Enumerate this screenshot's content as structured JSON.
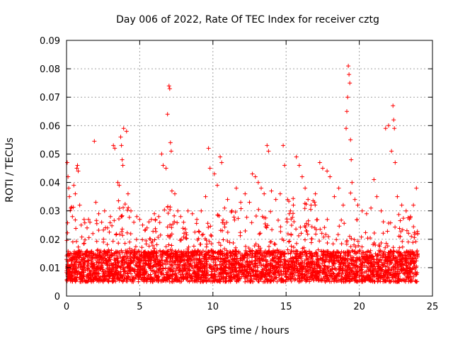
{
  "chart_data": {
    "type": "scatter",
    "title": "Day 006 of 2022, Rate Of TEC Index for receiver cztg",
    "xlabel": "GPS time / hours",
    "ylabel": "ROTI / TECUs",
    "xlim": [
      0,
      25
    ],
    "ylim": [
      0,
      0.09
    ],
    "xticks": [
      "0",
      "5",
      "10",
      "15",
      "20",
      "25"
    ],
    "yticks": [
      "0",
      "0.01",
      "0.02",
      "0.03",
      "0.04",
      "0.05",
      "0.06",
      "0.07",
      "0.08",
      "0.09"
    ],
    "grid": true,
    "marker": "+",
    "color": "#ff0000",
    "series": [
      {
        "values_note": "",
        "points": [
          [
            0.05,
            0.047
          ],
          [
            0.1,
            0.042
          ],
          [
            0.15,
            0.038
          ],
          [
            0.2,
            0.035
          ],
          [
            0.3,
            0.031
          ],
          [
            0.4,
            0.028
          ],
          [
            0.5,
            0.039
          ],
          [
            0.6,
            0.036
          ],
          [
            0.7,
            0.045
          ],
          [
            0.75,
            0.046
          ],
          [
            0.8,
            0.044
          ],
          [
            0.9,
            0.032
          ],
          [
            1.0,
            0.025
          ],
          [
            1.2,
            0.027
          ],
          [
            1.4,
            0.024
          ],
          [
            1.6,
            0.026
          ],
          [
            1.8,
            0.022
          ],
          [
            1.9,
            0.0545
          ],
          [
            2.0,
            0.033
          ],
          [
            2.2,
            0.029
          ],
          [
            2.4,
            0.026
          ],
          [
            2.6,
            0.03
          ],
          [
            2.8,
            0.024
          ],
          [
            3.0,
            0.028
          ],
          [
            3.2,
            0.053
          ],
          [
            3.3,
            0.052
          ],
          [
            3.5,
            0.04
          ],
          [
            3.6,
            0.039
          ],
          [
            3.7,
            0.056
          ],
          [
            3.75,
            0.053
          ],
          [
            3.8,
            0.048
          ],
          [
            3.85,
            0.046
          ],
          [
            3.9,
            0.059
          ],
          [
            4.1,
            0.058
          ],
          [
            4.2,
            0.036
          ],
          [
            4.4,
            0.03
          ],
          [
            4.6,
            0.026
          ],
          [
            4.8,
            0.028
          ],
          [
            5.0,
            0.027
          ],
          [
            5.2,
            0.025
          ],
          [
            5.5,
            0.024
          ],
          [
            5.8,
            0.027
          ],
          [
            6.0,
            0.029
          ],
          [
            6.3,
            0.028
          ],
          [
            6.5,
            0.05
          ],
          [
            6.6,
            0.046
          ],
          [
            6.8,
            0.045
          ],
          [
            6.9,
            0.064
          ],
          [
            7.0,
            0.074
          ],
          [
            7.05,
            0.073
          ],
          [
            7.1,
            0.054
          ],
          [
            7.15,
            0.051
          ],
          [
            7.2,
            0.037
          ],
          [
            7.4,
            0.036
          ],
          [
            7.6,
            0.03
          ],
          [
            7.8,
            0.028
          ],
          [
            8.0,
            0.026
          ],
          [
            8.3,
            0.03
          ],
          [
            8.6,
            0.029
          ],
          [
            8.9,
            0.027
          ],
          [
            9.2,
            0.03
          ],
          [
            9.5,
            0.035
          ],
          [
            9.7,
            0.052
          ],
          [
            9.8,
            0.045
          ],
          [
            10.1,
            0.043
          ],
          [
            10.3,
            0.039
          ],
          [
            10.5,
            0.049
          ],
          [
            10.6,
            0.047
          ],
          [
            10.8,
            0.031
          ],
          [
            11.0,
            0.034
          ],
          [
            11.3,
            0.03
          ],
          [
            11.6,
            0.038
          ],
          [
            11.9,
            0.033
          ],
          [
            12.2,
            0.036
          ],
          [
            12.5,
            0.033
          ],
          [
            12.7,
            0.043
          ],
          [
            12.9,
            0.042
          ],
          [
            13.1,
            0.04
          ],
          [
            13.3,
            0.038
          ],
          [
            13.5,
            0.036
          ],
          [
            13.7,
            0.053
          ],
          [
            13.8,
            0.051
          ],
          [
            14.0,
            0.037
          ],
          [
            14.3,
            0.034
          ],
          [
            14.6,
            0.036
          ],
          [
            14.8,
            0.053
          ],
          [
            14.9,
            0.046
          ],
          [
            15.1,
            0.034
          ],
          [
            15.3,
            0.03
          ],
          [
            15.5,
            0.032
          ],
          [
            15.7,
            0.049
          ],
          [
            15.9,
            0.046
          ],
          [
            16.1,
            0.042
          ],
          [
            16.3,
            0.038
          ],
          [
            16.5,
            0.034
          ],
          [
            16.7,
            0.032
          ],
          [
            17.0,
            0.036
          ],
          [
            17.3,
            0.047
          ],
          [
            17.5,
            0.045
          ],
          [
            17.8,
            0.044
          ],
          [
            18.0,
            0.042
          ],
          [
            18.3,
            0.035
          ],
          [
            18.6,
            0.038
          ],
          [
            18.9,
            0.032
          ],
          [
            19.1,
            0.059
          ],
          [
            19.15,
            0.065
          ],
          [
            19.2,
            0.07
          ],
          [
            19.25,
            0.081
          ],
          [
            19.3,
            0.078
          ],
          [
            19.35,
            0.075
          ],
          [
            19.4,
            0.055
          ],
          [
            19.45,
            0.048
          ],
          [
            19.5,
            0.04
          ],
          [
            19.7,
            0.034
          ],
          [
            19.9,
            0.032
          ],
          [
            20.2,
            0.03
          ],
          [
            20.5,
            0.029
          ],
          [
            20.8,
            0.031
          ],
          [
            21.0,
            0.041
          ],
          [
            21.2,
            0.035
          ],
          [
            21.5,
            0.03
          ],
          [
            21.8,
            0.059
          ],
          [
            22.0,
            0.06
          ],
          [
            22.2,
            0.051
          ],
          [
            22.3,
            0.067
          ],
          [
            22.35,
            0.062
          ],
          [
            22.4,
            0.059
          ],
          [
            22.45,
            0.047
          ],
          [
            22.6,
            0.035
          ],
          [
            22.9,
            0.032
          ],
          [
            23.2,
            0.03
          ],
          [
            23.5,
            0.028
          ],
          [
            23.7,
            0.032
          ],
          [
            23.9,
            0.038
          ]
        ]
      }
    ]
  }
}
